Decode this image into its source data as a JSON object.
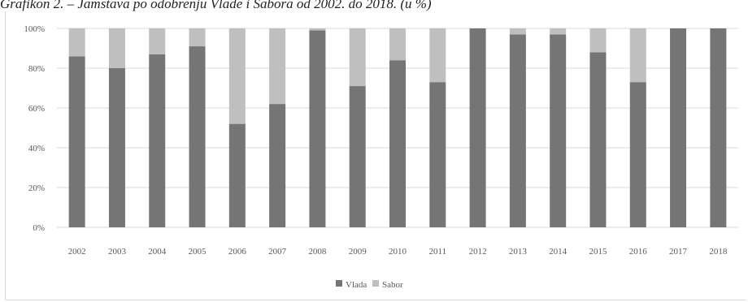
{
  "title": "Grafikon 2. – Jamstava po odobrenju Vlade i Sabora od 2002. do 2018. (u %)",
  "chart_data": {
    "type": "bar",
    "stacked": true,
    "categories": [
      "2002",
      "2003",
      "2004",
      "2005",
      "2006",
      "2007",
      "2008",
      "2009",
      "2010",
      "2011",
      "2012",
      "2013",
      "2014",
      "2015",
      "2016",
      "2017",
      "2018"
    ],
    "series": [
      {
        "name": "Vlada",
        "color": "#757575",
        "values": [
          86,
          80,
          87,
          91,
          52,
          62,
          99,
          71,
          84,
          73,
          100,
          97,
          97,
          88,
          73,
          100,
          100
        ]
      },
      {
        "name": "Sabor",
        "color": "#bfbfbf",
        "values": [
          14,
          20,
          13,
          9,
          48,
          38,
          1,
          29,
          16,
          27,
          0,
          3,
          3,
          12,
          27,
          0,
          0
        ]
      }
    ],
    "y_ticks": [
      "0%",
      "20%",
      "40%",
      "60%",
      "80%",
      "100%"
    ],
    "ylim": [
      0,
      100
    ],
    "grid": true,
    "legend_position": "bottom"
  }
}
